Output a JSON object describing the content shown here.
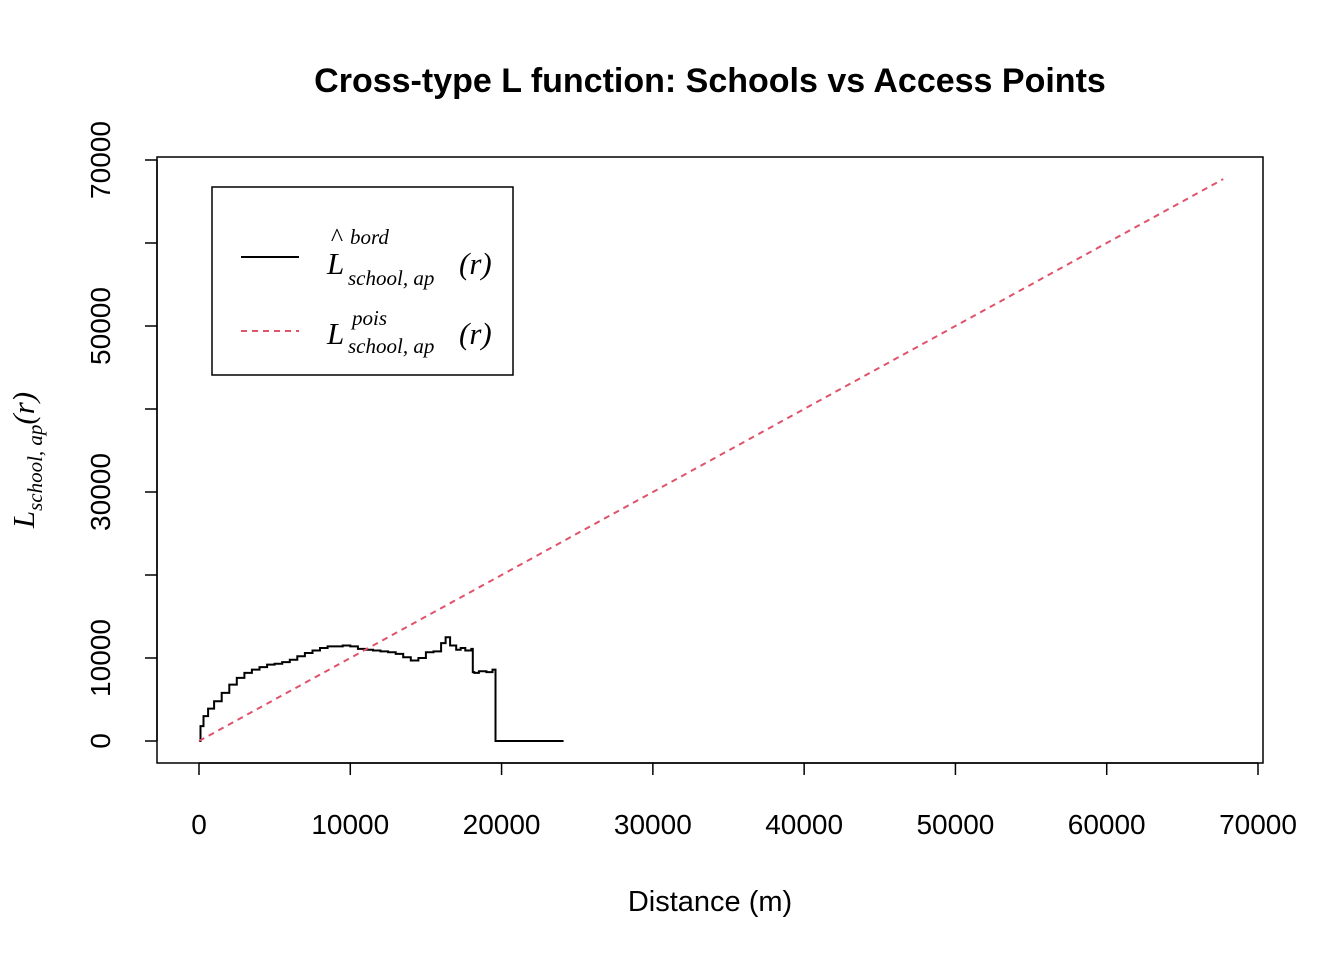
{
  "chart_data": {
    "type": "line",
    "title": "Cross-type L function: Schools vs Access Points",
    "xlabel": "Distance (m)",
    "ylabel": {
      "base": "L",
      "subscript": "school, ap",
      "arg": "(r)"
    },
    "xlim": [
      0,
      70000
    ],
    "ylim": [
      0,
      70000
    ],
    "x_ticks": [
      0,
      10000,
      20000,
      30000,
      40000,
      50000,
      60000,
      70000
    ],
    "y_ticks": [
      0,
      10000,
      20000,
      30000,
      40000,
      50000,
      60000,
      70000
    ],
    "y_tick_labels": [
      "0",
      "10000",
      "30000",
      "50000",
      "70000"
    ],
    "y_tick_labeled_values": [
      0,
      10000,
      30000,
      50000,
      70000
    ],
    "grid": false,
    "legend_position": "top-left",
    "series": [
      {
        "legend": {
          "base": "L",
          "hat": "^",
          "superscript": "bord",
          "subscript": "school, ap",
          "arg": "(r)"
        },
        "color": "#000000",
        "style": "solid",
        "x": [
          0,
          100,
          300,
          600,
          1000,
          1500,
          2000,
          2500,
          3000,
          3500,
          4000,
          4500,
          5000,
          5500,
          6000,
          6500,
          7000,
          7500,
          8000,
          8500,
          9000,
          9500,
          10000,
          10500,
          11000,
          11500,
          12000,
          12500,
          13000,
          13500,
          14000,
          14500,
          15000,
          15500,
          16000,
          16300,
          16600,
          17000,
          17300,
          17600,
          18000,
          18100,
          18200,
          18500,
          19000,
          19400,
          19600,
          19800,
          24100
        ],
        "y": [
          0,
          1800,
          3000,
          3900,
          4800,
          5800,
          6800,
          7600,
          8200,
          8600,
          8900,
          9200,
          9300,
          9500,
          9800,
          10200,
          10600,
          10900,
          11200,
          11400,
          11400,
          11500,
          11400,
          11100,
          11000,
          10900,
          10800,
          10700,
          10500,
          10100,
          9700,
          10000,
          10700,
          10800,
          11800,
          12500,
          11500,
          11000,
          11200,
          10900,
          11100,
          8300,
          8200,
          8400,
          8300,
          8600,
          0,
          0,
          0
        ]
      },
      {
        "legend": {
          "base": "L",
          "superscript": "pois",
          "subscript": "school, ap",
          "arg": "(r)"
        },
        "color": "#DF536B",
        "style": "dashed",
        "x": [
          0,
          67700
        ],
        "y": [
          0,
          67700
        ]
      }
    ]
  }
}
